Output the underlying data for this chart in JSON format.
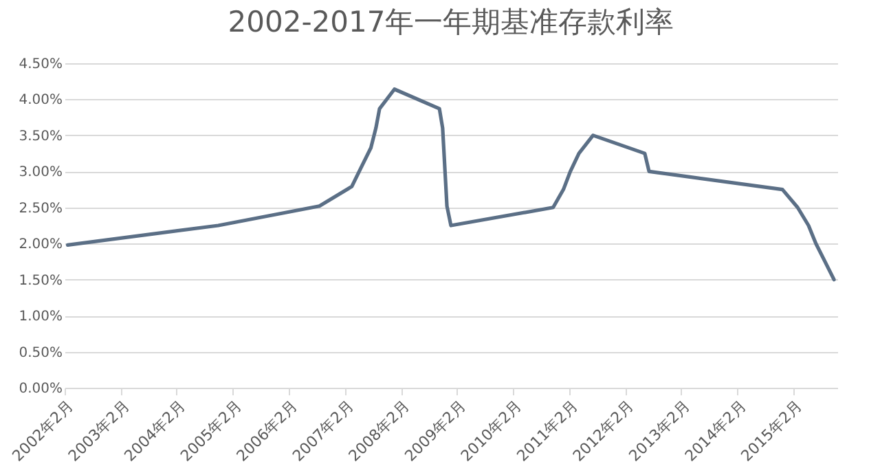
{
  "chart_data": {
    "type": "line",
    "title": "2002-2017年一年期基准存款利率",
    "x": [
      "2002-02-21",
      "2004-10-29",
      "2006-08-19",
      "2007-03-18",
      "2007-05-19",
      "2007-07-21",
      "2007-08-22",
      "2007-09-15",
      "2007-12-21",
      "2008-10-09",
      "2008-10-30",
      "2008-11-27",
      "2008-12-23",
      "2010-10-20",
      "2010-12-26",
      "2011-02-09",
      "2011-04-06",
      "2011-07-07",
      "2012-06-08",
      "2012-07-06",
      "2014-11-22",
      "2015-03-01",
      "2015-05-11",
      "2015-06-28",
      "2015-08-26",
      "2015-10-24"
    ],
    "series": [
      {
        "color": "#5b6f86",
        "values": [
          1.98,
          2.25,
          2.52,
          2.79,
          3.06,
          3.33,
          3.6,
          3.87,
          4.14,
          3.87,
          3.6,
          2.52,
          2.25,
          2.5,
          2.75,
          3.0,
          3.25,
          3.5,
          3.25,
          3.0,
          2.75,
          2.5,
          2.25,
          2.0,
          1.75,
          1.5
        ]
      }
    ],
    "xlim": [
      "2002-02-01",
      "2015-11-15"
    ],
    "xticks": [
      {
        "value": "2002-02",
        "label": "2002年2月"
      },
      {
        "value": "2003-02",
        "label": "2003年2月"
      },
      {
        "value": "2004-02",
        "label": "2004年2月"
      },
      {
        "value": "2005-02",
        "label": "2005年2月"
      },
      {
        "value": "2006-02",
        "label": "2006年2月"
      },
      {
        "value": "2007-02",
        "label": "2007年2月"
      },
      {
        "value": "2008-02",
        "label": "2008年2月"
      },
      {
        "value": "2009-02",
        "label": "2009年2月"
      },
      {
        "value": "2010-02",
        "label": "2010年2月"
      },
      {
        "value": "2011-02",
        "label": "2011年2月"
      },
      {
        "value": "2012-02",
        "label": "2012年2月"
      },
      {
        "value": "2013-02",
        "label": "2013年2月"
      },
      {
        "value": "2014-02",
        "label": "2014年2月"
      },
      {
        "value": "2015-02",
        "label": "2015年2月"
      }
    ],
    "ylim": [
      0,
      4.5
    ],
    "yticks": [
      {
        "value": 0,
        "label": "0.00%"
      },
      {
        "value": 0.5,
        "label": "0.50%"
      },
      {
        "value": 1,
        "label": "1.00%"
      },
      {
        "value": 1.5,
        "label": "1.50%"
      },
      {
        "value": 2,
        "label": "2.00%"
      },
      {
        "value": 2.5,
        "label": "2.50%"
      },
      {
        "value": 3,
        "label": "3.00%"
      },
      {
        "value": 3.5,
        "label": "3.50%"
      },
      {
        "value": 4,
        "label": "4.00%"
      },
      {
        "value": 4.5,
        "label": "4.50%"
      }
    ],
    "grid": "y",
    "legend": false,
    "marker": "none",
    "line_style": "solid"
  }
}
